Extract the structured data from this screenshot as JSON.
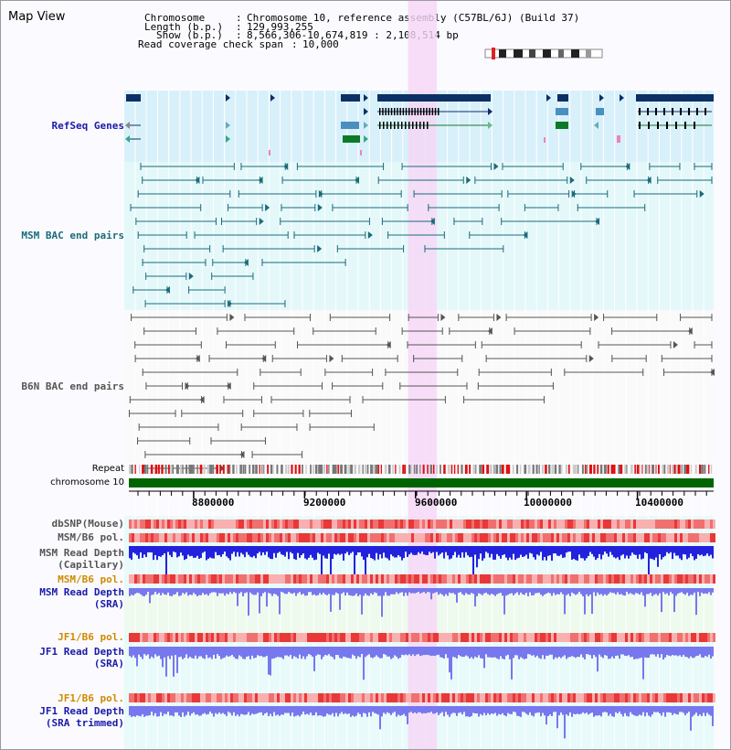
{
  "map_title": "Map View",
  "header": {
    "chromosome_label": "Chromosome",
    "chromosome_value": "Chromosome 10, reference assembly (C57BL/6J) (Build 37)",
    "length_label": "Length (b.p.)",
    "length_value": "129,993,255",
    "show_label": "Show (b.p.)",
    "show_value": "8,566,306-10,674,819 : 2,108,514 bp",
    "coverage_label": "Read coverage check span",
    "coverage_value": "10,000"
  },
  "view": {
    "start": 8566306,
    "end": 10674819,
    "highlight_start": 9573000,
    "highlight_end": 9677000
  },
  "lanes": {
    "refseq": {
      "label": "RefSeq Genes",
      "color": "#1a1aaa"
    },
    "msm_bac": {
      "label": "MSM BAC end pairs",
      "color": "#1a6b7a"
    },
    "b6n_bac": {
      "label": "B6N BAC end pairs",
      "color": "#555555"
    }
  },
  "repeat_label": "Repeat",
  "chromosome_bar_label": "chromosome 10",
  "colors": {
    "gene_dark": "#0c2f66",
    "gene_mid": "#4a8fc0",
    "gene_green": "#0b7a28",
    "msm_track": "#1a6b7a",
    "b6n_track": "#555555",
    "chromosome_bar": "#006400",
    "highlight": "#f6d6f6",
    "read_depth": "#2222dd",
    "read_depth_light": "#7777ee"
  },
  "axis": {
    "ticks": [
      "8800000",
      "9200000",
      "9600000",
      "10000000",
      "10400000"
    ],
    "tick_values": [
      8800000,
      9200000,
      9600000,
      10000000,
      10400000
    ]
  },
  "data_tracks": [
    {
      "label_lines": [
        "dbSNP(Mouse)"
      ],
      "color": "#555555"
    },
    {
      "label_lines": [
        "MSM/B6 pol."
      ],
      "color": "#555555"
    },
    {
      "label_lines": [
        "MSM Read Depth",
        "(Capillary)"
      ],
      "color": "#555555"
    },
    {
      "label_lines": [
        "MSM/B6 pol."
      ],
      "color": "#d08a00"
    },
    {
      "label_lines": [
        "MSM Read Depth",
        "(SRA)"
      ],
      "color": "#1a1aaa"
    },
    {
      "label_lines": [
        "JF1/B6 pol."
      ],
      "color": "#d08a00"
    },
    {
      "label_lines": [
        "JF1 Read Depth",
        "(SRA)"
      ],
      "color": "#1a1aaa"
    },
    {
      "label_lines": [
        "JF1/B6 pol."
      ],
      "color": "#d08a00"
    },
    {
      "label_lines": [
        "JF1 Read Depth",
        "(SRA trimmed)"
      ],
      "color": "#1a1aaa"
    }
  ]
}
